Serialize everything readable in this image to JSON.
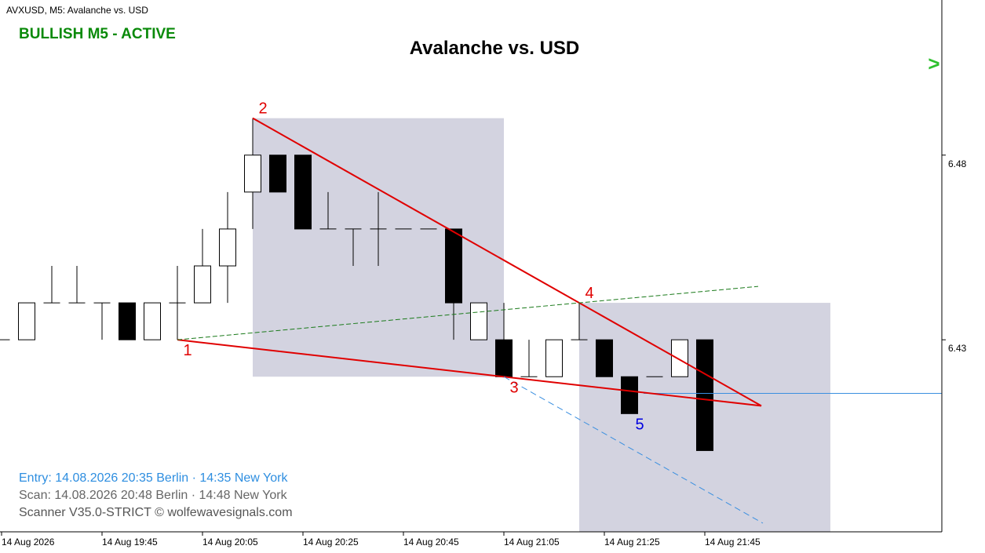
{
  "header": "AVXUSD, M5:  Avalanche vs. USD",
  "status": "BULLISH M5 - ACTIVE",
  "arrow": ">",
  "info": [
    "Entry: 14.08.2026  20:35 Berlin · 14:35 New York",
    "Scan:  14.08.2026  20:48 Berlin · 14:48 New York",
    "Scanner V35.0-STRICT   © wolfewavesignals.com"
  ],
  "chart_data": {
    "type": "candlestick",
    "title": "Avalanche vs. USD",
    "categories": [
      "14 Aug 2026",
      null,
      null,
      null,
      "14 Aug 19:45",
      null,
      null,
      null,
      "14 Aug 20:05",
      null,
      null,
      null,
      "14 Aug 20:25",
      null,
      null,
      null,
      "14 Aug 20:45",
      null,
      null,
      null,
      "14 Aug 21:05",
      null,
      null,
      null,
      "14 Aug 21:25",
      null,
      null,
      null,
      "14 Aug 21:45"
    ],
    "open": [
      6.43,
      6.43,
      6.44,
      6.44,
      6.44,
      6.44,
      6.43,
      6.44,
      6.44,
      6.45,
      6.47,
      6.48,
      6.48,
      6.46,
      6.46,
      6.46,
      6.46,
      6.46,
      6.46,
      6.43,
      6.43,
      6.42,
      6.42,
      6.43,
      6.43,
      6.42,
      6.42,
      6.42,
      6.43
    ],
    "high": [
      6.43,
      6.44,
      6.45,
      6.45,
      6.44,
      6.44,
      6.44,
      6.45,
      6.46,
      6.47,
      6.49,
      6.48,
      6.48,
      6.47,
      6.46,
      6.47,
      6.46,
      6.46,
      6.46,
      6.44,
      6.44,
      6.43,
      6.43,
      6.44,
      6.43,
      6.42,
      6.42,
      6.43,
      6.43
    ],
    "low": [
      6.43,
      6.43,
      6.44,
      6.44,
      6.43,
      6.43,
      6.43,
      6.43,
      6.44,
      6.44,
      6.46,
      6.47,
      6.46,
      6.46,
      6.45,
      6.45,
      6.46,
      6.46,
      6.43,
      6.43,
      6.42,
      6.42,
      6.42,
      6.43,
      6.42,
      6.41,
      6.42,
      6.42,
      6.4
    ],
    "close": [
      6.43,
      6.44,
      6.44,
      6.44,
      6.44,
      6.43,
      6.44,
      6.44,
      6.45,
      6.46,
      6.48,
      6.47,
      6.46,
      6.46,
      6.46,
      6.46,
      6.46,
      6.46,
      6.44,
      6.44,
      6.42,
      6.42,
      6.43,
      6.43,
      6.42,
      6.41,
      6.42,
      6.43,
      6.4
    ],
    "up_color": "#ffffff",
    "down_color": "#000000",
    "ylim": [
      6.378,
      6.522
    ],
    "yticks": [
      6.43,
      6.48
    ],
    "wolfe_points": [
      {
        "label": "1",
        "index": 7,
        "price": 6.43,
        "color": "#e00000"
      },
      {
        "label": "2",
        "index": 10,
        "price": 6.49,
        "color": "#e00000"
      },
      {
        "label": "3",
        "index": 20,
        "price": 6.42,
        "color": "#e00000"
      },
      {
        "label": "4",
        "index": 23,
        "price": 6.44,
        "color": "#e00000"
      },
      {
        "label": "5",
        "index": 25,
        "price": 6.41,
        "color": "#0000e0"
      }
    ],
    "entry_price": 6.4155
  }
}
